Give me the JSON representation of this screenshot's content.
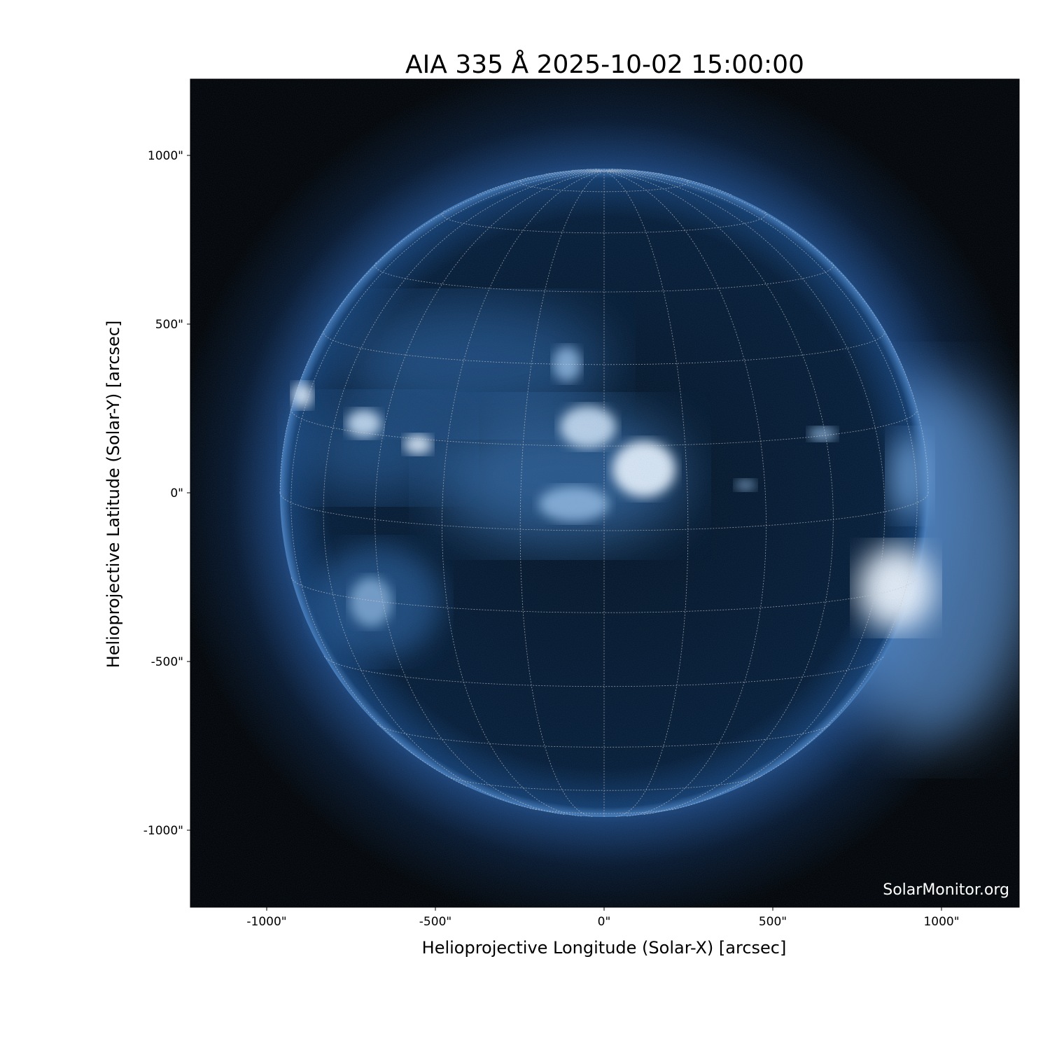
{
  "title": "AIA 335 Å 2025-10-02 15:00:00",
  "xlabel": "Helioprojective Longitude (Solar-X) [arcsec]",
  "ylabel": "Helioprojective Latitude (Solar-Y) [arcsec]",
  "watermark": "SolarMonitor.org",
  "x_ticks": [
    {
      "value": -1000,
      "label": "-1000\""
    },
    {
      "value": -500,
      "label": "-500\""
    },
    {
      "value": 0,
      "label": "0\""
    },
    {
      "value": 500,
      "label": "500\""
    },
    {
      "value": 1000,
      "label": "1000\""
    }
  ],
  "y_ticks": [
    {
      "value": 1000,
      "label": "1000\""
    },
    {
      "value": 500,
      "label": "500\""
    },
    {
      "value": 0,
      "label": "0\""
    },
    {
      "value": -500,
      "label": "-500\""
    },
    {
      "value": -1000,
      "label": "-1000\""
    }
  ],
  "image": {
    "instrument": "AIA",
    "wavelength": "335 Å",
    "colormap_colors": [
      "#000000",
      "#0b2a55",
      "#2f68a8",
      "#9cc2e8",
      "#ffffff"
    ],
    "grid_spacing_deg": 15
  }
}
